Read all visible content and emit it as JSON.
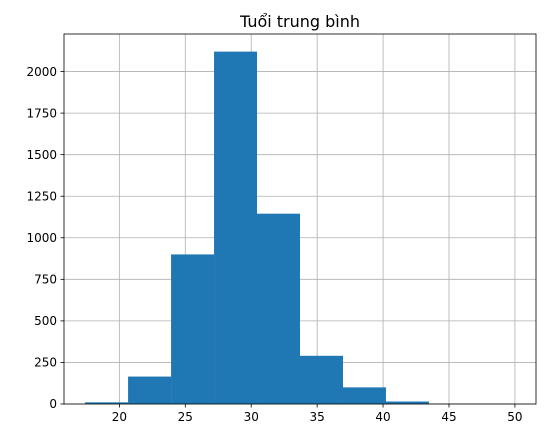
{
  "chart_data": {
    "type": "bar",
    "title": "Tuổi trung bình",
    "xlabel": "",
    "ylabel": "",
    "bins": [
      {
        "x0": 17.4,
        "x1": 20.66,
        "count": 10
      },
      {
        "x0": 20.66,
        "x1": 23.92,
        "count": 165
      },
      {
        "x0": 23.92,
        "x1": 27.18,
        "count": 900
      },
      {
        "x0": 27.18,
        "x1": 30.44,
        "count": 2120
      },
      {
        "x0": 30.44,
        "x1": 33.7,
        "count": 1145
      },
      {
        "x0": 33.7,
        "x1": 36.96,
        "count": 290
      },
      {
        "x0": 36.96,
        "x1": 40.22,
        "count": 100
      },
      {
        "x0": 40.22,
        "x1": 43.48,
        "count": 15
      },
      {
        "x0": 43.48,
        "x1": 46.74,
        "count": 2
      },
      {
        "x0": 46.74,
        "x1": 50.0,
        "count": 2
      }
    ],
    "xlim": [
      15.8,
      51.6
    ],
    "ylim": [
      0,
      2226
    ],
    "xticks": [
      20,
      25,
      30,
      35,
      40,
      45,
      50
    ],
    "xtick_labels": [
      "20",
      "25",
      "30",
      "35",
      "40",
      "45",
      "50"
    ],
    "yticks": [
      0,
      250,
      500,
      750,
      1000,
      1250,
      1500,
      1750,
      2000
    ],
    "ytick_labels": [
      "0",
      "250",
      "500",
      "750",
      "1000",
      "1250",
      "1500",
      "1750",
      "2000"
    ],
    "grid": true,
    "bar_color": "#1f77b4"
  }
}
